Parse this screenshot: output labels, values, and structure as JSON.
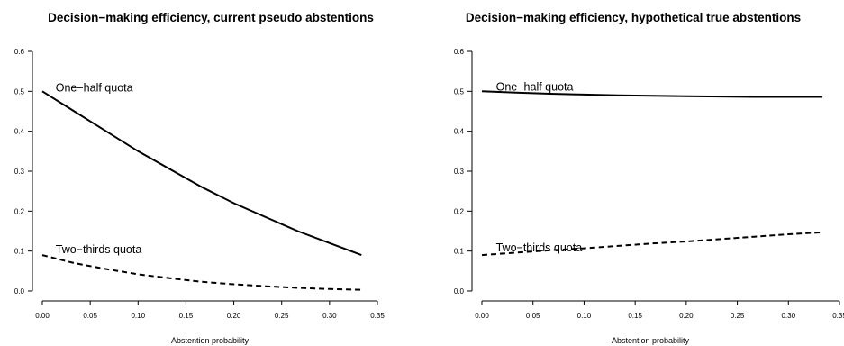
{
  "chart_data": [
    {
      "type": "line",
      "title": "Decision−making efficiency, current pseudo abstentions",
      "xlabel": "Abstention probability",
      "ylabel": "",
      "xlim": [
        0,
        0.35
      ],
      "ylim": [
        0,
        0.6
      ],
      "x_ticks": [
        "0.00",
        "0.05",
        "0.10",
        "0.15",
        "0.20",
        "0.25",
        "0.30",
        "0.35"
      ],
      "y_ticks": [
        "0.0",
        "0.1",
        "0.2",
        "0.3",
        "0.4",
        "0.5",
        "0.6"
      ],
      "x": [
        0,
        0.0333,
        0.0667,
        0.1,
        0.1333,
        0.1667,
        0.2,
        0.2333,
        0.2667,
        0.3,
        0.3333
      ],
      "series": [
        {
          "name": "One−half quota",
          "line_style": "solid",
          "values": [
            0.5,
            0.45,
            0.4,
            0.35,
            0.305,
            0.26,
            0.22,
            0.185,
            0.15,
            0.12,
            0.09
          ]
        },
        {
          "name": "Two−thirds quota",
          "line_style": "dashed",
          "values": [
            0.09,
            0.07,
            0.055,
            0.042,
            0.032,
            0.023,
            0.017,
            0.012,
            0.008,
            0.005,
            0.003
          ]
        }
      ]
    },
    {
      "type": "line",
      "title": "Decision−making efficiency, hypothetical true abstentions",
      "xlabel": "Abstention probability",
      "ylabel": "",
      "xlim": [
        0,
        0.35
      ],
      "ylim": [
        0,
        0.6
      ],
      "x_ticks": [
        "0.00",
        "0.05",
        "0.10",
        "0.15",
        "0.20",
        "0.25",
        "0.30",
        "0.35"
      ],
      "y_ticks": [
        "0.0",
        "0.1",
        "0.2",
        "0.3",
        "0.4",
        "0.5",
        "0.6"
      ],
      "x": [
        0,
        0.0333,
        0.0667,
        0.1,
        0.1333,
        0.1667,
        0.2,
        0.2333,
        0.2667,
        0.3,
        0.3333
      ],
      "series": [
        {
          "name": "One−half quota",
          "line_style": "solid",
          "values": [
            0.5,
            0.497,
            0.494,
            0.492,
            0.49,
            0.489,
            0.488,
            0.487,
            0.486,
            0.486,
            0.486
          ]
        },
        {
          "name": "Two−thirds quota",
          "line_style": "dashed",
          "values": [
            0.09,
            0.096,
            0.102,
            0.107,
            0.113,
            0.119,
            0.124,
            0.13,
            0.136,
            0.142,
            0.147
          ]
        }
      ]
    }
  ]
}
